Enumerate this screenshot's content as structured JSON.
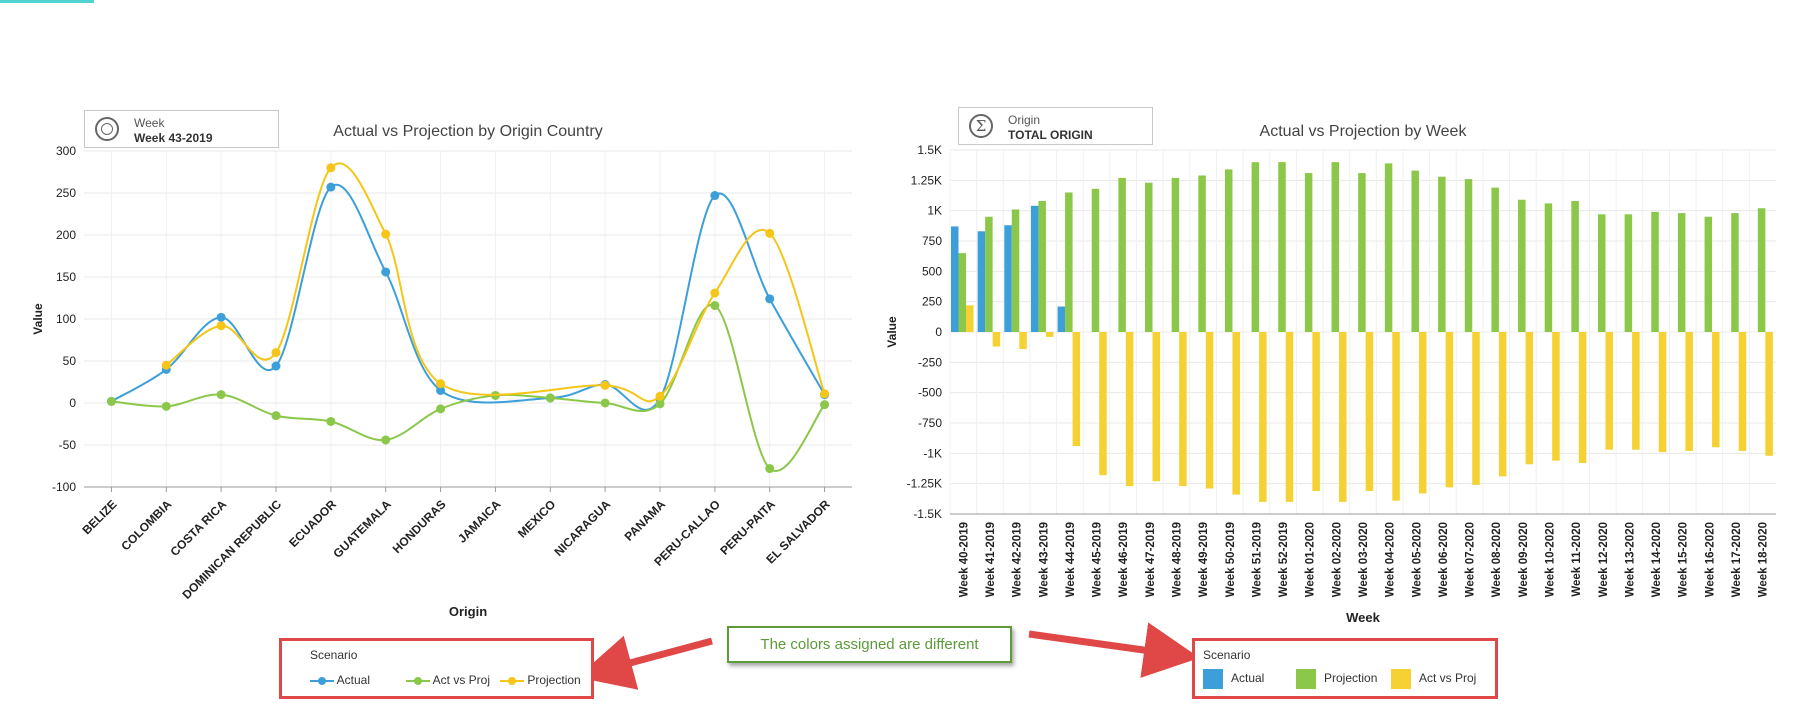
{
  "filters": {
    "left": {
      "label": "Week",
      "value": "Week 43-2019"
    },
    "right": {
      "label": "Origin",
      "value": "TOTAL ORIGIN"
    }
  },
  "annotation": {
    "text": "The colors assigned are different"
  },
  "colors": {
    "actual": "#3c9fd9",
    "projection": "#8bc84a",
    "act_vs_proj": "#f5d133",
    "projection_line": "#f5c518",
    "callout_border": "#e04848",
    "note_green": "#5c9a3a"
  },
  "legends": {
    "left": {
      "title": "Scenario",
      "items": [
        "Actual",
        "Act vs Proj",
        "Projection"
      ]
    },
    "right": {
      "title": "Scenario",
      "items": [
        "Actual",
        "Projection",
        "Act vs Proj"
      ]
    }
  },
  "chart_data": [
    {
      "type": "line",
      "title": "Actual vs Projection by Origin Country",
      "xlabel": "Origin",
      "ylabel": "Value",
      "ylim": [
        -100,
        300
      ],
      "yticks": [
        -100,
        -50,
        0,
        50,
        100,
        150,
        200,
        250,
        300
      ],
      "grid": true,
      "categories": [
        "BELIZE",
        "COLOMBIA",
        "COSTA RICA",
        "DOMINICAN REPUBLIC",
        "ECUADOR",
        "GUATEMALA",
        "HONDURAS",
        "JAMAICA",
        "MEXICO",
        "NICARAGUA",
        "PANAMA",
        "PERU-CALLAO",
        "PERU-PAITA",
        "EL SALVADOR"
      ],
      "series": [
        {
          "name": "Actual",
          "color": "#3c9fd9",
          "values": [
            2,
            40,
            102,
            44,
            257,
            156,
            15,
            null,
            6,
            22,
            5,
            247,
            124,
            10
          ]
        },
        {
          "name": "Act vs Proj",
          "color": "#8bc84a",
          "values": [
            2,
            -4,
            10,
            -15,
            -22,
            -44,
            -7,
            9,
            6,
            0,
            -1,
            116,
            -78,
            -2
          ]
        },
        {
          "name": "Projection",
          "color": "#f5c518",
          "values": [
            null,
            45,
            92,
            60,
            280,
            201,
            23,
            null,
            null,
            21,
            8,
            131,
            202,
            11
          ]
        }
      ]
    },
    {
      "type": "bar",
      "title": "Actual vs Projection by Week",
      "xlabel": "Week",
      "ylabel": "Value",
      "ylim": [
        -1500,
        1500
      ],
      "yticks": [
        -1500,
        -1250,
        -1000,
        -750,
        -500,
        -250,
        0,
        250,
        500,
        750,
        1000,
        1250,
        1500
      ],
      "ytick_labels": [
        "-1.5K",
        "-1.25K",
        "-1K",
        "-750",
        "-500",
        "-250",
        "0",
        "250",
        "500",
        "750",
        "1K",
        "1.25K",
        "1.5K"
      ],
      "grid": true,
      "categories": [
        "Week 40-2019",
        "Week 41-2019",
        "Week 42-2019",
        "Week 43-2019",
        "Week 44-2019",
        "Week 45-2019",
        "Week 46-2019",
        "Week 47-2019",
        "Week 48-2019",
        "Week 49-2019",
        "Week 50-2019",
        "Week 51-2019",
        "Week 52-2019",
        "Week 01-2020",
        "Week 02-2020",
        "Week 03-2020",
        "Week 04-2020",
        "Week 05-2020",
        "Week 06-2020",
        "Week 07-2020",
        "Week 08-2020",
        "Week 09-2020",
        "Week 10-2020",
        "Week 11-2020",
        "Week 12-2020",
        "Week 13-2020",
        "Week 14-2020",
        "Week 15-2020",
        "Week 16-2020",
        "Week 17-2020",
        "Week 18-2020"
      ],
      "series": [
        {
          "name": "Actual",
          "color": "#3c9fd9",
          "values": [
            870,
            830,
            880,
            1040,
            210,
            null,
            null,
            null,
            null,
            null,
            null,
            null,
            null,
            null,
            null,
            null,
            null,
            null,
            null,
            null,
            null,
            null,
            null,
            null,
            null,
            null,
            null,
            null,
            null,
            null,
            null
          ]
        },
        {
          "name": "Projection",
          "color": "#8bc84a",
          "values": [
            650,
            950,
            1010,
            1080,
            1150,
            1180,
            1270,
            1230,
            1270,
            1290,
            1340,
            1400,
            1400,
            1310,
            1400,
            1310,
            1390,
            1330,
            1280,
            1260,
            1190,
            1090,
            1060,
            1080,
            970,
            970,
            990,
            980,
            950,
            980,
            1020
          ]
        },
        {
          "name": "Act vs Proj",
          "color": "#f5d133",
          "values": [
            220,
            -120,
            -140,
            -40,
            -940,
            -1180,
            -1270,
            -1230,
            -1270,
            -1290,
            -1340,
            -1400,
            -1400,
            -1310,
            -1400,
            -1310,
            -1390,
            -1330,
            -1280,
            -1260,
            -1190,
            -1090,
            -1060,
            -1080,
            -970,
            -970,
            -990,
            -980,
            -950,
            -980,
            -1020
          ]
        }
      ]
    }
  ]
}
